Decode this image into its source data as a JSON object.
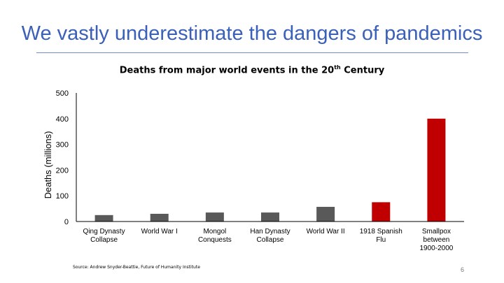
{
  "slide": {
    "title": "We vastly underestimate the dangers of pandemics",
    "source": "Source: Andrew Snyder-Beattie, Future of Humanity Institute",
    "page_number": "6"
  },
  "colors": {
    "title": "#3a60b8",
    "bar_default": "#595959",
    "bar_pandemic": "#c00000",
    "axis": "#000000"
  },
  "chart_data": {
    "type": "bar",
    "title_main": "Deaths from major world events in the 20",
    "title_sup": "th",
    "title_end": " Century",
    "ylabel": "Deaths (millions)",
    "xlabel": "",
    "ylim": [
      0,
      500
    ],
    "yticks": [
      0,
      100,
      200,
      300,
      400,
      500
    ],
    "grid": false,
    "categories": [
      [
        "Qing Dynasty",
        "Collapse"
      ],
      [
        "World War I"
      ],
      [
        "Mongol",
        "Conquests"
      ],
      [
        "Han Dynasty",
        "Collapse"
      ],
      [
        "World War II"
      ],
      [
        "1918 Spanish",
        "Flu"
      ],
      [
        "Smallpox",
        "between",
        "1900-2000"
      ]
    ],
    "values": [
      25,
      30,
      35,
      35,
      57,
      75,
      400
    ],
    "highlight": [
      false,
      false,
      false,
      false,
      false,
      true,
      true
    ]
  }
}
